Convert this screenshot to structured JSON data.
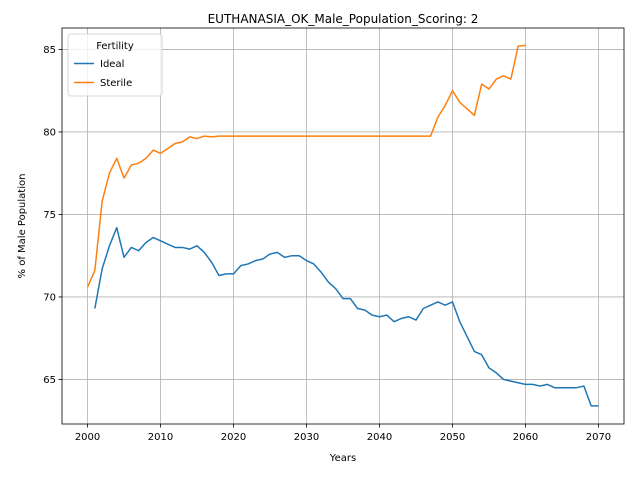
{
  "chart_data": {
    "type": "line",
    "title": "EUTHANASIA_OK_Male_Population_Scoring: 2",
    "xlabel": "Years",
    "ylabel": "% of Male Population",
    "xlim": [
      1996.5,
      2073.5
    ],
    "ylim": [
      62.3,
      86.3
    ],
    "xticks": [
      2000,
      2010,
      2020,
      2030,
      2040,
      2050,
      2060,
      2070
    ],
    "yticks": [
      65,
      70,
      75,
      80,
      85
    ],
    "grid": true,
    "legend": {
      "title": "Fertility",
      "placement": "upper-left"
    },
    "series": [
      {
        "name": "Ideal",
        "color": "#1f77b4",
        "x": [
          2001,
          2002,
          2003,
          2004,
          2005,
          2006,
          2007,
          2008,
          2009,
          2010,
          2011,
          2012,
          2013,
          2014,
          2015,
          2016,
          2017,
          2018,
          2019,
          2020,
          2021,
          2022,
          2023,
          2024,
          2025,
          2026,
          2027,
          2028,
          2029,
          2030,
          2031,
          2032,
          2033,
          2034,
          2035,
          2036,
          2037,
          2038,
          2039,
          2040,
          2041,
          2042,
          2043,
          2044,
          2045,
          2046,
          2047,
          2048,
          2049,
          2050,
          2051,
          2052,
          2053,
          2054,
          2055,
          2056,
          2057,
          2058,
          2059,
          2060,
          2061,
          2062,
          2063,
          2064,
          2065,
          2066,
          2067,
          2068,
          2069,
          2070
        ],
        "y": [
          69.3,
          71.7,
          73.1,
          74.2,
          72.4,
          73.0,
          72.8,
          73.3,
          73.6,
          73.4,
          73.2,
          73.0,
          73.0,
          72.9,
          73.1,
          72.7,
          72.1,
          71.3,
          71.4,
          71.4,
          71.9,
          72.0,
          72.2,
          72.3,
          72.6,
          72.7,
          72.4,
          72.5,
          72.5,
          72.2,
          72.0,
          71.5,
          70.9,
          70.5,
          69.9,
          69.9,
          69.3,
          69.2,
          68.9,
          68.8,
          68.9,
          68.5,
          68.7,
          68.8,
          68.6,
          69.3,
          69.5,
          69.7,
          69.5,
          69.7,
          68.5,
          67.6,
          66.7,
          66.5,
          65.7,
          65.4,
          65.0,
          64.9,
          64.8,
          64.7,
          64.7,
          64.6,
          64.7,
          64.5,
          64.5,
          64.5,
          64.5,
          64.6,
          63.4,
          63.4
        ]
      },
      {
        "name": "Sterile",
        "color": "#ff7f0e",
        "x": [
          2000,
          2001,
          2002,
          2003,
          2004,
          2005,
          2006,
          2007,
          2008,
          2009,
          2010,
          2011,
          2012,
          2013,
          2014,
          2015,
          2016,
          2017,
          2018,
          2019,
          2020,
          2021,
          2022,
          2023,
          2024,
          2025,
          2026,
          2027,
          2028,
          2029,
          2030,
          2031,
          2032,
          2033,
          2034,
          2035,
          2036,
          2037,
          2038,
          2039,
          2040,
          2041,
          2042,
          2043,
          2044,
          2045,
          2046,
          2047,
          2048,
          2049,
          2050,
          2051,
          2052,
          2053,
          2054,
          2055,
          2056,
          2057,
          2058,
          2059,
          2060
        ],
        "y": [
          70.6,
          71.6,
          75.8,
          77.5,
          78.4,
          77.2,
          78.0,
          78.1,
          78.4,
          78.9,
          78.7,
          79.0,
          79.3,
          79.4,
          79.7,
          79.6,
          79.75,
          79.7,
          79.75,
          79.75,
          79.75,
          79.75,
          79.75,
          79.75,
          79.75,
          79.75,
          79.75,
          79.75,
          79.75,
          79.75,
          79.75,
          79.75,
          79.75,
          79.75,
          79.75,
          79.75,
          79.75,
          79.75,
          79.75,
          79.75,
          79.75,
          79.75,
          79.75,
          79.75,
          79.75,
          79.75,
          79.75,
          79.75,
          80.9,
          81.6,
          82.5,
          81.8,
          81.4,
          81.0,
          82.9,
          82.6,
          83.2,
          83.4,
          83.2,
          85.2,
          85.25
        ]
      }
    ]
  }
}
